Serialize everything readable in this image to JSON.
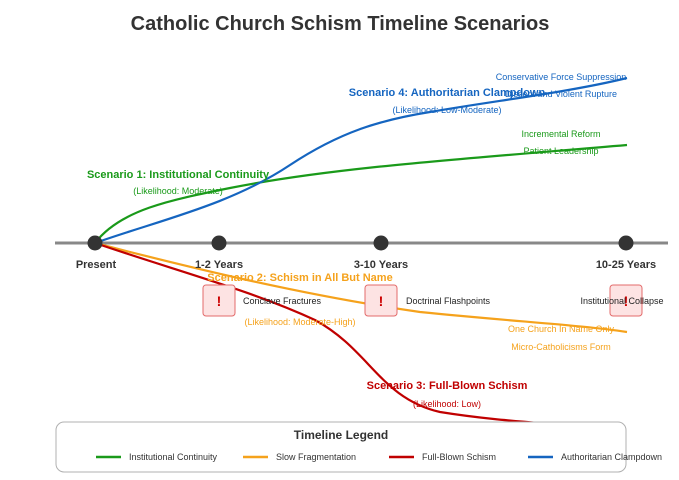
{
  "title": "Catholic Church Schism Timeline Scenarios",
  "colors": {
    "timeline": "#888888",
    "milestone_dot": "#333333",
    "continuity": "#1a9a1a",
    "fragmentation": "#f5a21c",
    "schism": "#c00000",
    "authoritarian": "#1565c0",
    "flashpoint_fill": "#fde3e3",
    "flashpoint_stroke": "#e36b6b"
  },
  "milestones": [
    "Present",
    "1-2 Years",
    "3-10 Years",
    "10-25 Years"
  ],
  "flashpoints": [
    "Conclave Fractures",
    "Doctrinal Flashpoints",
    "Institutional Collapse"
  ],
  "flashpoint_icon": "!",
  "scenarios": [
    {
      "key": "continuity",
      "title": "Scenario 1: Institutional Continuity",
      "likelihood": "(Likelihood: Moderate)",
      "endpoints": [
        "Incremental Reform",
        "Patient Leadership"
      ]
    },
    {
      "key": "fragmentation",
      "title": "Scenario 2: Schism in All But Name",
      "likelihood": "(Likelihood: Moderate-High)",
      "endpoints": [
        "One Church In Name Only",
        "Micro-Catholicisms Form"
      ]
    },
    {
      "key": "schism",
      "title": "Scenario 3: Full-Blown Schism",
      "likelihood": "(Likelihood: Low)",
      "endpoints": []
    },
    {
      "key": "authoritarian",
      "title": "Scenario 4: Authoritarian Clampdown",
      "likelihood": "(Likelihood: Low-Moderate)",
      "endpoints": [
        "Conservative Force Suppression",
        "Dissent and Violent Rupture"
      ]
    }
  ],
  "legend": {
    "title": "Timeline Legend",
    "items": [
      {
        "key": "continuity",
        "label": "Institutional Continuity"
      },
      {
        "key": "fragmentation",
        "label": "Slow Fragmentation"
      },
      {
        "key": "schism",
        "label": "Full-Blown Schism"
      },
      {
        "key": "authoritarian",
        "label": "Authoritarian Clampdown"
      }
    ]
  }
}
